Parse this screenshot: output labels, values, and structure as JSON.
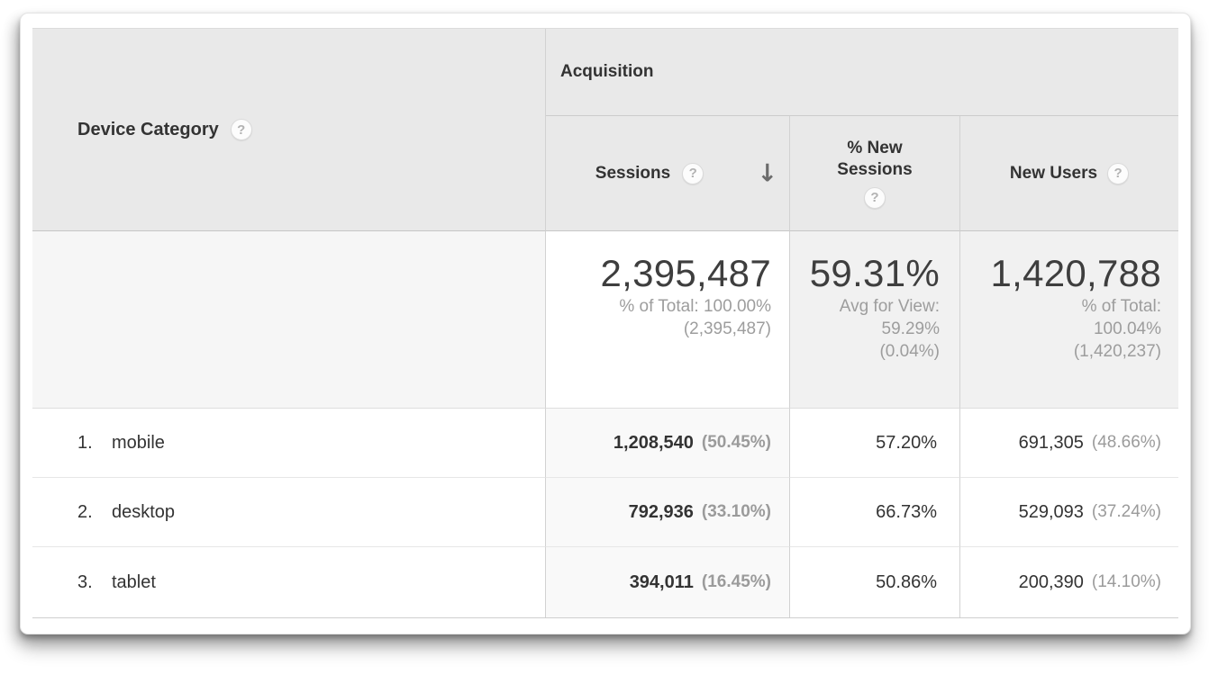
{
  "colors": {
    "header_bg": "#e9e9e9",
    "summary_metric_bg": "#f1f1f1",
    "sorted_summary_bg": "#ffffff",
    "sorted_column_bg": "#f9f9f9",
    "text_dark": "#333333",
    "text_gray": "#9b9b9b"
  },
  "icons": {
    "help": "?",
    "sort_desc": "↓"
  },
  "table": {
    "dimension_header": {
      "label": "Device Category"
    },
    "group_header": {
      "label": "Acquisition"
    },
    "columns": {
      "sessions": {
        "label": "Sessions",
        "sorted": "descending"
      },
      "pct_new_sessions": {
        "label": "% New Sessions"
      },
      "new_users": {
        "label": "New Users"
      }
    },
    "summary": {
      "sessions": {
        "value": "2,395,487",
        "sub": [
          "% of Total: 100.00%",
          "(2,395,487)"
        ]
      },
      "pct_new_sessions": {
        "value": "59.31%",
        "sub": [
          "Avg for View:",
          "59.29%",
          "(0.04%)"
        ]
      },
      "new_users": {
        "value": "1,420,788",
        "sub": [
          "% of Total:",
          "100.04%",
          "(1,420,237)"
        ]
      }
    },
    "rows": [
      {
        "rank": "1.",
        "label": "mobile",
        "sessions": "1,208,540",
        "sessions_pct": "(50.45%)",
        "pct_new_sessions": "57.20%",
        "new_users": "691,305",
        "new_users_pct": "(48.66%)"
      },
      {
        "rank": "2.",
        "label": "desktop",
        "sessions": "792,936",
        "sessions_pct": "(33.10%)",
        "pct_new_sessions": "66.73%",
        "new_users": "529,093",
        "new_users_pct": "(37.24%)"
      },
      {
        "rank": "3.",
        "label": "tablet",
        "sessions": "394,011",
        "sessions_pct": "(16.45%)",
        "pct_new_sessions": "50.86%",
        "new_users": "200,390",
        "new_users_pct": "(14.10%)"
      }
    ]
  },
  "chart_data": {
    "type": "table",
    "title": "Device Category — Acquisition",
    "categories": [
      "mobile",
      "desktop",
      "tablet"
    ],
    "series": [
      {
        "name": "Sessions",
        "values": [
          1208540,
          792936,
          394011
        ],
        "total": 2395487
      },
      {
        "name": "Sessions % of Total",
        "values": [
          50.45,
          33.1,
          16.45
        ]
      },
      {
        "name": "% New Sessions",
        "values": [
          57.2,
          66.73,
          50.86
        ],
        "average": 59.31
      },
      {
        "name": "New Users",
        "values": [
          691305,
          529093,
          200390
        ],
        "total": 1420788
      },
      {
        "name": "New Users % of Total",
        "values": [
          48.66,
          37.24,
          14.1
        ]
      }
    ]
  }
}
